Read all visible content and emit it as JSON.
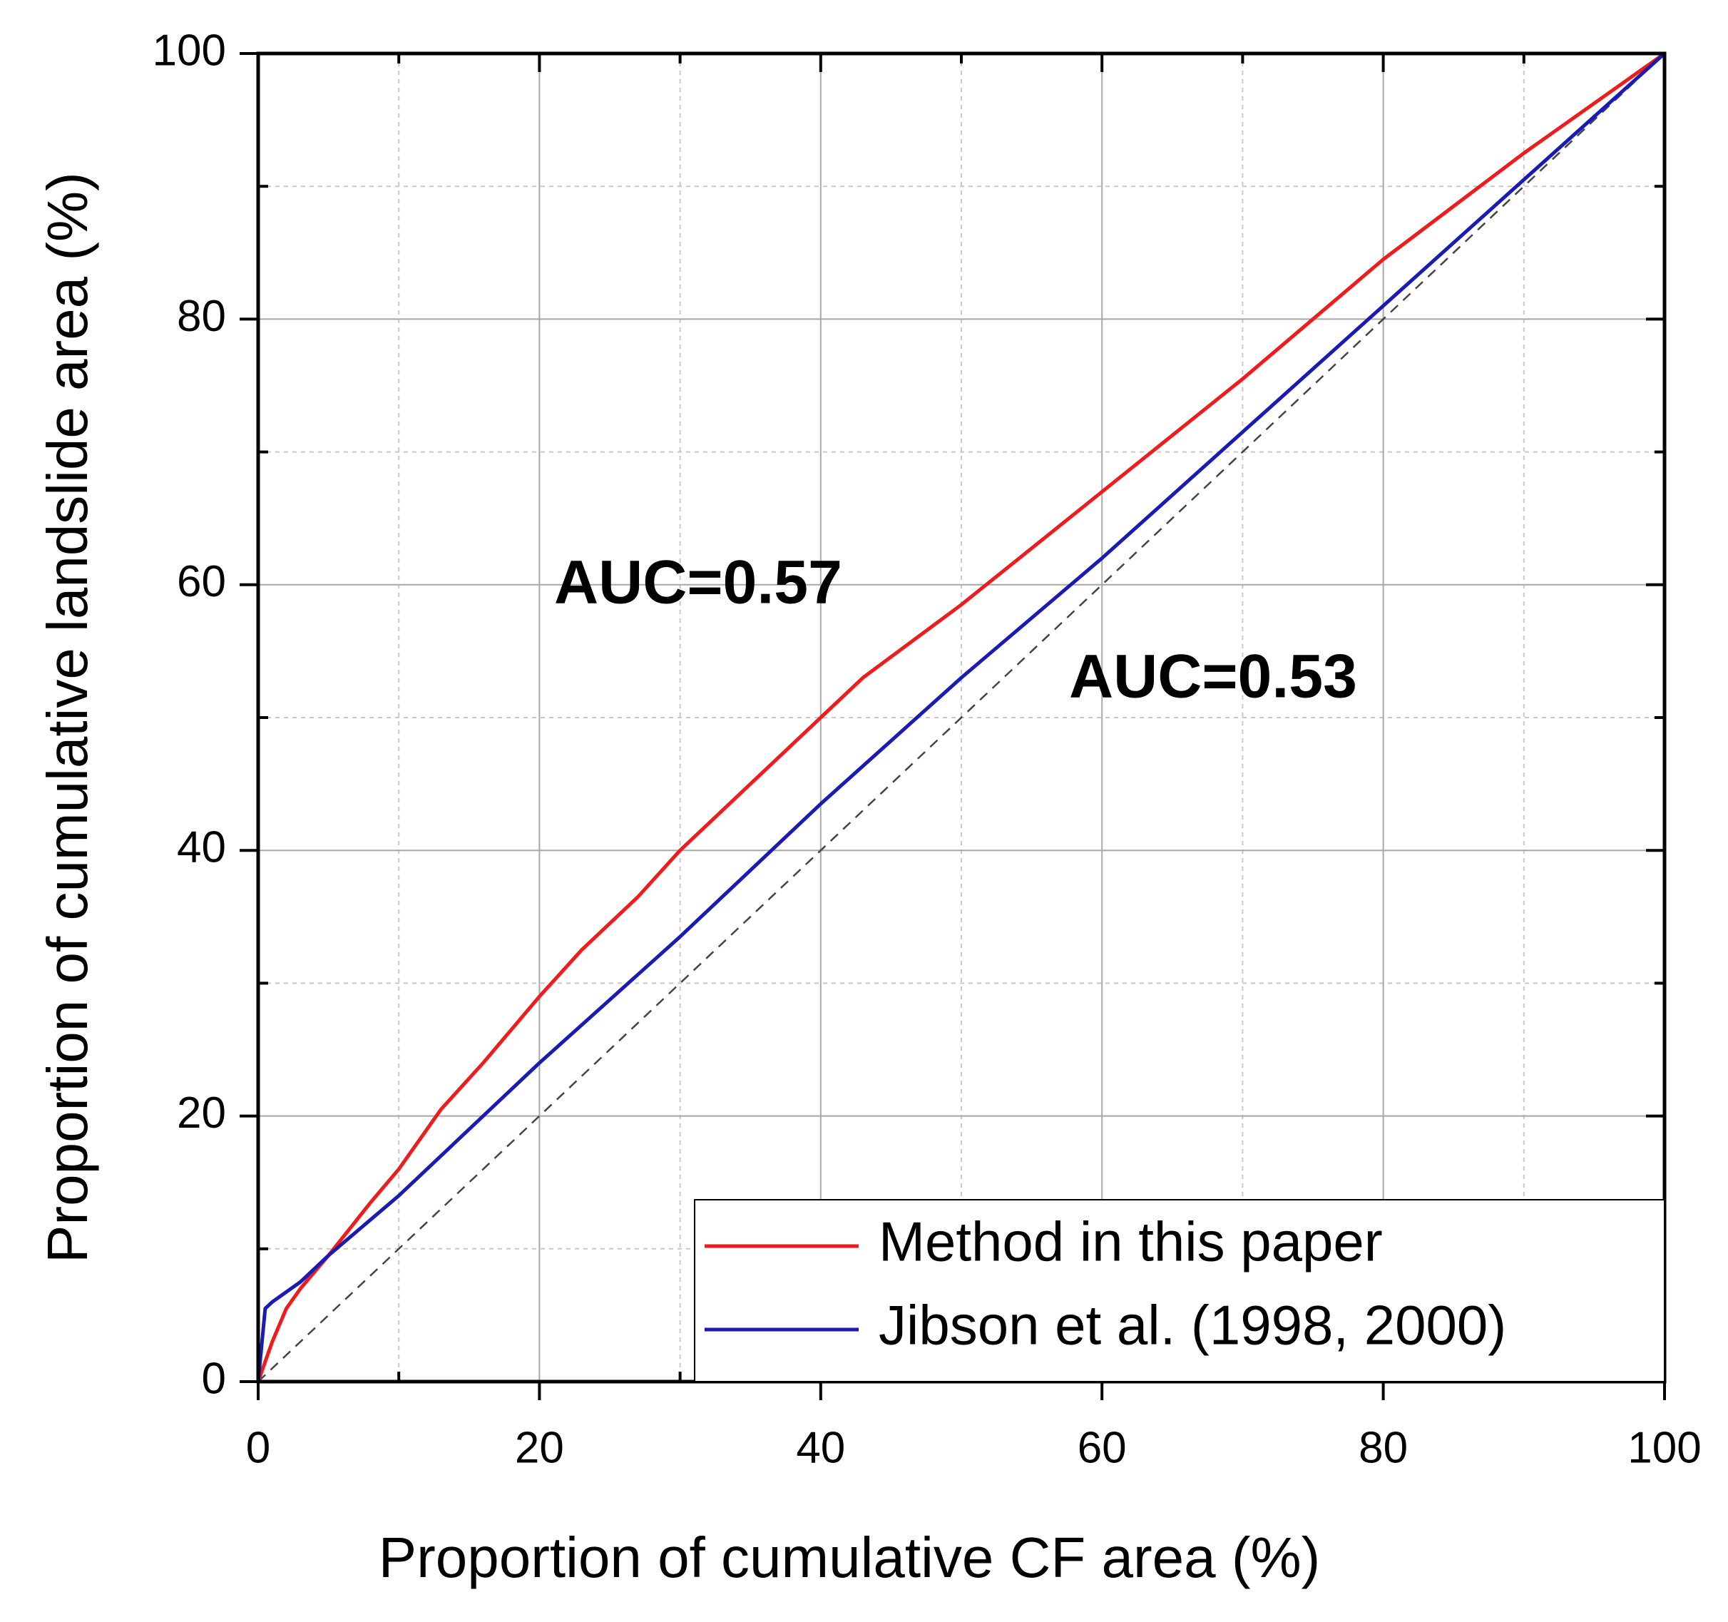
{
  "chart_data": {
    "type": "line",
    "xlabel": "Proportion of cumulative CF area (%)",
    "ylabel": "Proportion of cumulative landslide area (%)",
    "xlim": [
      0,
      100
    ],
    "ylim": [
      0,
      100
    ],
    "xticks": [
      0,
      20,
      40,
      60,
      80,
      100
    ],
    "yticks": [
      0,
      20,
      40,
      60,
      80,
      100
    ],
    "xminorticks": [
      10,
      30,
      50,
      70,
      90
    ],
    "yminorticks": [
      10,
      30,
      50,
      70,
      90
    ],
    "grid": true,
    "legend": "lower right",
    "annotations": [
      "AUC=0.57",
      "AUC=0.53"
    ],
    "series": [
      {
        "name": "Method in this paper",
        "color": "#ee1c1c",
        "x": [
          0,
          1,
          2,
          3,
          5,
          8,
          10,
          13,
          16,
          20,
          23,
          27,
          30,
          35,
          40,
          43,
          50,
          60,
          70,
          80,
          90,
          100
        ],
        "values": [
          0,
          3,
          5.5,
          7,
          9.5,
          13.5,
          16,
          20.5,
          24,
          29,
          32.5,
          36.5,
          40,
          45,
          50,
          53,
          58.5,
          67,
          75.5,
          84.5,
          92.5,
          100
        ]
      },
      {
        "name": "Jibson et al. (1998, 2000)",
        "color": "#1a1ab4",
        "x": [
          0,
          0.5,
          1,
          3,
          5,
          10,
          20,
          30,
          40,
          50,
          60,
          70,
          80,
          90,
          100
        ],
        "values": [
          0,
          5.5,
          6,
          7.5,
          9.5,
          14,
          24,
          33.5,
          43.5,
          53,
          62,
          71.5,
          81,
          90.5,
          100
        ]
      }
    ]
  }
}
